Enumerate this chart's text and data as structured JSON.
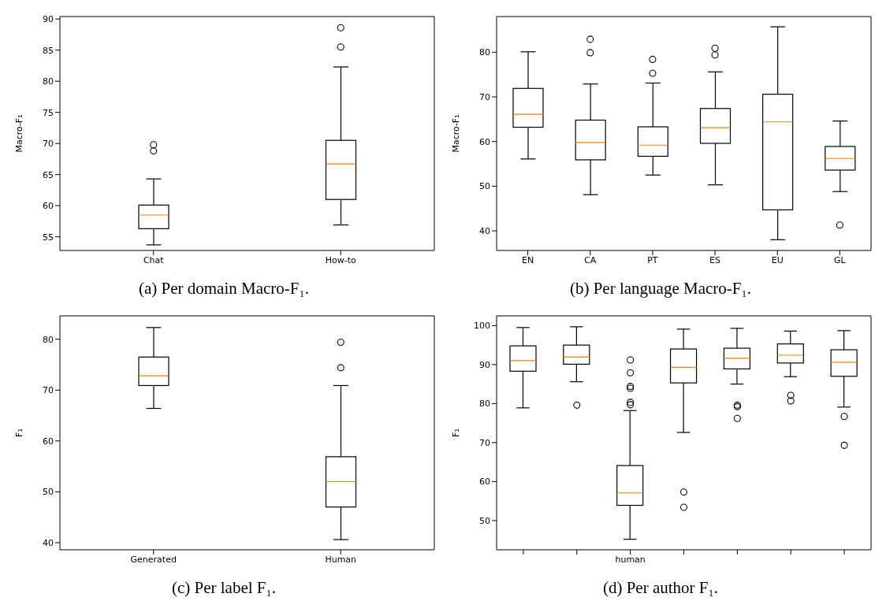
{
  "chart_data": [
    {
      "type": "box",
      "title": "(a) Per domain Macro-F₁.",
      "ylabel": "Macro-F₁",
      "categories": [
        "Chat",
        "How-to"
      ],
      "ylim": [
        52.8,
        90.4
      ],
      "yticks": [
        55,
        60,
        65,
        70,
        75,
        80,
        85,
        90
      ],
      "boxes": [
        {
          "low": 53.7,
          "q1": 56.3,
          "median": 58.5,
          "q3": 60.1,
          "high": 64.3,
          "outliers": [
            68.8,
            69.8
          ]
        },
        {
          "low": 56.9,
          "q1": 61.0,
          "median": 66.7,
          "q3": 70.5,
          "high": 82.3,
          "outliers": [
            85.5,
            88.6
          ]
        }
      ]
    },
    {
      "type": "box",
      "title": "(b) Per language Macro-F₁.",
      "ylabel": "Macro-F₁",
      "categories": [
        "EN",
        "CA",
        "PT",
        "ES",
        "EU",
        "GL"
      ],
      "ylim": [
        35.6,
        88
      ],
      "yticks": [
        40,
        50,
        60,
        70,
        80
      ],
      "boxes": [
        {
          "low": 56.1,
          "q1": 63.2,
          "median": 66.1,
          "q3": 71.9,
          "high": 80.1
        },
        {
          "low": 48.1,
          "q1": 55.9,
          "median": 59.8,
          "q3": 64.8,
          "high": 72.9,
          "outliers": [
            79.9,
            82.9
          ]
        },
        {
          "low": 52.5,
          "q1": 56.7,
          "median": 59.2,
          "q3": 63.3,
          "high": 73.1,
          "outliers": [
            75.3,
            78.4
          ]
        },
        {
          "low": 50.3,
          "q1": 59.6,
          "median": 63.1,
          "q3": 67.4,
          "high": 75.6,
          "outliers": [
            79.4,
            80.9
          ]
        },
        {
          "low": 38.0,
          "q1": 44.7,
          "median": 64.4,
          "q3": 70.6,
          "high": 85.7
        },
        {
          "low": 48.8,
          "q1": 53.6,
          "median": 56.2,
          "q3": 58.9,
          "high": 64.6,
          "outliers": [
            41.3
          ]
        }
      ]
    },
    {
      "type": "box",
      "title": "(c) Per label F₁.",
      "ylabel": "F₁",
      "categories": [
        "Generated",
        "Human"
      ],
      "ylim": [
        38.6,
        84.6
      ],
      "yticks": [
        40,
        50,
        60,
        70,
        80
      ],
      "boxes": [
        {
          "low": 66.4,
          "q1": 70.9,
          "median": 72.8,
          "q3": 76.5,
          "high": 82.3
        },
        {
          "low": 40.6,
          "q1": 47.0,
          "median": 52.0,
          "q3": 56.9,
          "high": 70.9,
          "outliers": [
            74.4,
            79.4
          ]
        }
      ]
    },
    {
      "type": "box",
      "title": "(d) Per author F₁.",
      "ylabel": "F₁",
      "categories": [
        null,
        null,
        "human",
        null,
        null,
        null,
        null
      ],
      "ylim": [
        42.5,
        102.5
      ],
      "yticks": [
        50,
        60,
        70,
        80,
        90,
        100
      ],
      "boxes": [
        {
          "low": 78.9,
          "q1": 88.3,
          "median": 91.0,
          "q3": 94.8,
          "high": 99.5
        },
        {
          "low": 85.6,
          "q1": 90.1,
          "median": 91.9,
          "q3": 95.0,
          "high": 99.7,
          "outliers": [
            79.6
          ]
        },
        {
          "low": 45.2,
          "q1": 53.9,
          "median": 57.1,
          "q3": 64.1,
          "high": 78.2,
          "outliers": [
            79.7,
            80.3,
            83.9,
            84.4,
            87.9,
            91.2
          ]
        },
        {
          "low": 72.6,
          "q1": 85.3,
          "median": 89.3,
          "q3": 94.0,
          "high": 99.1,
          "outliers": [
            53.4,
            57.3
          ]
        },
        {
          "low": 85.0,
          "q1": 88.9,
          "median": 91.6,
          "q3": 94.2,
          "high": 99.3,
          "outliers": [
            76.2,
            79.2,
            79.6
          ]
        },
        {
          "low": 86.9,
          "q1": 90.4,
          "median": 92.4,
          "q3": 95.3,
          "high": 98.6,
          "outliers": [
            80.7,
            82.1
          ]
        },
        {
          "low": 79.1,
          "q1": 87.0,
          "median": 90.6,
          "q3": 93.8,
          "high": 98.7,
          "outliers": [
            69.3,
            76.7
          ]
        }
      ]
    }
  ]
}
